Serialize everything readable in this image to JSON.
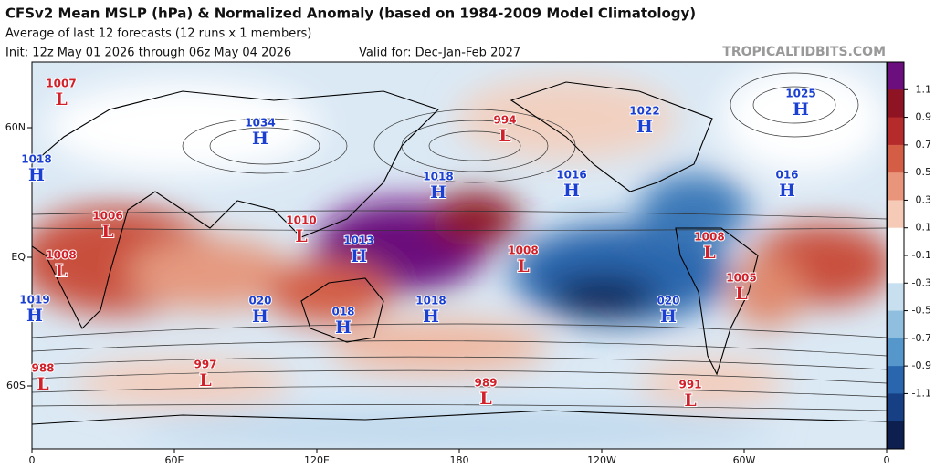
{
  "header": {
    "title": "CFSv2 Mean MSLP (hPa) & Normalized Anomaly (based on 1984-2009 Model Climatology)",
    "subtitle": "Average of last 12 forecasts (12 runs x 1 members)",
    "init": "Init: 12z May 01 2026 through 06z May 04 2026",
    "valid": "Valid for: Dec-Jan-Feb 2027",
    "watermark": "TROPICALTIDBITS.COM"
  },
  "axes": {
    "x_labels": [
      "0",
      "60E",
      "120E",
      "180",
      "120W",
      "60W",
      "0"
    ],
    "y_labels": [
      "60N",
      "EQ",
      "60S"
    ]
  },
  "colorbar": {
    "labels": [
      "1.1",
      "0.9",
      "0.7",
      "0.5",
      "0.3",
      "0.1",
      "-0.1",
      "-0.3",
      "-0.5",
      "-0.7",
      "-0.9",
      "-1.1"
    ],
    "colors": [
      "#6a0f7d",
      "#8e1424",
      "#b52a2a",
      "#d35d45",
      "#e8957b",
      "#f5cbb8",
      "#ffffff",
      "#ffffff",
      "#c8dff0",
      "#8fbedf",
      "#5596cb",
      "#2a66ad",
      "#163f84",
      "#0c1f4e"
    ]
  },
  "centers": [
    {
      "letter": "L",
      "value": "1007"
    },
    {
      "letter": "H",
      "value": "1034"
    },
    {
      "letter": "H",
      "value": "1018"
    },
    {
      "letter": "L",
      "value": "1006"
    },
    {
      "letter": "L",
      "value": "1008"
    },
    {
      "letter": "H",
      "value": "1019"
    },
    {
      "letter": "H",
      "value": "020"
    },
    {
      "letter": "H",
      "value": "018"
    },
    {
      "letter": "L",
      "value": "1010"
    },
    {
      "letter": "H",
      "value": "1013"
    },
    {
      "letter": "H",
      "value": "1018"
    },
    {
      "letter": "H",
      "value": "1018"
    },
    {
      "letter": "L",
      "value": "994"
    },
    {
      "letter": "L",
      "value": "1008"
    },
    {
      "letter": "H",
      "value": "1016"
    },
    {
      "letter": "H",
      "value": "1022"
    },
    {
      "letter": "H",
      "value": "1025"
    },
    {
      "letter": "H",
      "value": "016"
    },
    {
      "letter": "L",
      "value": "1008"
    },
    {
      "letter": "L",
      "value": "1005"
    },
    {
      "letter": "H",
      "value": "020"
    },
    {
      "letter": "L",
      "value": "988"
    },
    {
      "letter": "L",
      "value": "997"
    },
    {
      "letter": "L",
      "value": "989"
    },
    {
      "letter": "L",
      "value": "991"
    }
  ]
}
